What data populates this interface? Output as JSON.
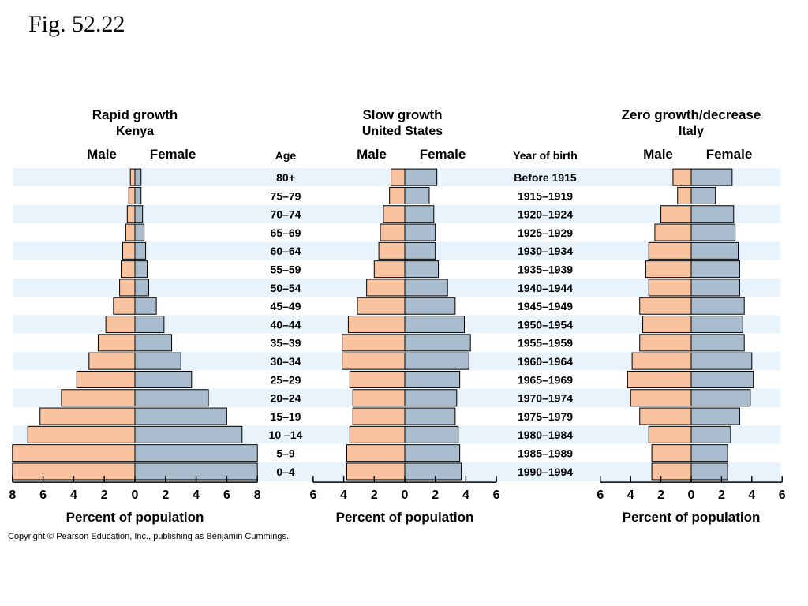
{
  "figure_title": "Fig. 52.22",
  "copyright": "Copyright © Pearson Education, Inc., publishing as Benjamin Cummings.",
  "colors": {
    "male": "#f9c3a0",
    "female": "#a8bccd",
    "stripe": "#e8f3fb",
    "outline": "#000000"
  },
  "age_header": "Age",
  "birth_header": "Year of birth",
  "age_groups": [
    "80+",
    "75–79",
    "70–74",
    "65–69",
    "60–64",
    "55–59",
    "50–54",
    "45–49",
    "40–44",
    "35–39",
    "30–34",
    "25–29",
    "20–24",
    "15–19",
    "10 –14",
    "5–9",
    "0–4"
  ],
  "birth_years": [
    "Before 1915",
    "1915–1919",
    "1920–1924",
    "1925–1929",
    "1930–1934",
    "1935–1939",
    "1940–1944",
    "1945–1949",
    "1950–1954",
    "1955–1959",
    "1960–1964",
    "1965–1969",
    "1970–1974",
    "1975–1979",
    "1980–1984",
    "1985–1989",
    "1990–1994"
  ],
  "chart_data": [
    {
      "type": "bar",
      "title": "Rapid growth",
      "subtitle": "Kenya",
      "male_label": "Male",
      "female_label": "Female",
      "xlabel": "Percent of population",
      "xlim": [
        -8,
        8
      ],
      "ticks": [
        8,
        6,
        4,
        2,
        0,
        2,
        4,
        6,
        8
      ],
      "categories": [
        "80+",
        "75–79",
        "70–74",
        "65–69",
        "60–64",
        "55–59",
        "50–54",
        "45–49",
        "40–44",
        "35–39",
        "30–34",
        "25–29",
        "20–24",
        "15–19",
        "10 –14",
        "5–9",
        "0–4"
      ],
      "series": [
        {
          "name": "Male",
          "values": [
            0.3,
            0.4,
            0.5,
            0.6,
            0.8,
            0.9,
            1.0,
            1.4,
            1.9,
            2.4,
            3.0,
            3.8,
            4.8,
            6.2,
            7.0,
            8.0,
            8.0
          ]
        },
        {
          "name": "Female",
          "values": [
            0.4,
            0.4,
            0.5,
            0.6,
            0.7,
            0.8,
            0.9,
            1.4,
            1.9,
            2.4,
            3.0,
            3.7,
            4.8,
            6.0,
            7.0,
            8.0,
            8.0
          ]
        }
      ]
    },
    {
      "type": "bar",
      "title": "Slow growth",
      "subtitle": "United States",
      "male_label": "Male",
      "female_label": "Female",
      "xlabel": "Percent of population",
      "xlim": [
        -6,
        6
      ],
      "ticks": [
        6,
        4,
        2,
        0,
        2,
        4,
        6
      ],
      "categories": [
        "80+",
        "75–79",
        "70–74",
        "65–69",
        "60–64",
        "55–59",
        "50–54",
        "45–49",
        "40–44",
        "35–39",
        "30–34",
        "25–29",
        "20–24",
        "15–19",
        "10 –14",
        "5–9",
        "0–4"
      ],
      "series": [
        {
          "name": "Male",
          "values": [
            0.9,
            1.0,
            1.4,
            1.6,
            1.7,
            2.0,
            2.5,
            3.1,
            3.7,
            4.1,
            4.1,
            3.6,
            3.4,
            3.4,
            3.6,
            3.8,
            3.8
          ]
        },
        {
          "name": "Female",
          "values": [
            2.1,
            1.6,
            1.9,
            2.0,
            2.0,
            2.2,
            2.8,
            3.3,
            3.9,
            4.3,
            4.2,
            3.6,
            3.4,
            3.3,
            3.5,
            3.6,
            3.7
          ]
        }
      ]
    },
    {
      "type": "bar",
      "title": "Zero growth/decrease",
      "subtitle": "Italy",
      "male_label": "Male",
      "female_label": "Female",
      "xlabel": "Percent of population",
      "xlim": [
        -6,
        6
      ],
      "ticks": [
        6,
        4,
        2,
        0,
        2,
        4,
        6
      ],
      "categories": [
        "80+",
        "75–79",
        "70–74",
        "65–69",
        "60–64",
        "55–59",
        "50–54",
        "45–49",
        "40–44",
        "35–39",
        "30–34",
        "25–29",
        "20–24",
        "15–19",
        "10 –14",
        "5–9",
        "0–4"
      ],
      "series": [
        {
          "name": "Male",
          "values": [
            1.2,
            0.9,
            2.0,
            2.4,
            2.8,
            3.0,
            2.8,
            3.4,
            3.2,
            3.4,
            3.9,
            4.2,
            4.0,
            3.4,
            2.8,
            2.6,
            2.6
          ]
        },
        {
          "name": "Female",
          "values": [
            2.7,
            1.6,
            2.8,
            2.9,
            3.1,
            3.2,
            3.2,
            3.5,
            3.4,
            3.5,
            4.0,
            4.1,
            3.9,
            3.2,
            2.6,
            2.4,
            2.4
          ]
        }
      ]
    }
  ]
}
